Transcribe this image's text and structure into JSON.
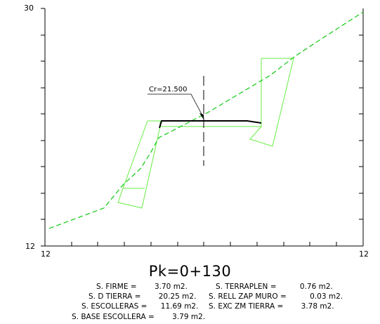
{
  "axes": {
    "y_top_label": "30",
    "y_bottom_label": "12",
    "x_left_label": "12",
    "x_right_label": "12"
  },
  "cr_label": "Cr=21.500",
  "title": "Pk=0+130",
  "quantities": [
    {
      "label": "S. FIRME =",
      "value": "3.70",
      "unit": "m2."
    },
    {
      "label": "S. TERRAPLEN =",
      "value": "0.76",
      "unit": "m2."
    },
    {
      "label": "S. D TIERRA =",
      "value": "20.25",
      "unit": "m2."
    },
    {
      "label": "S. RELL ZAP MURO =",
      "value": "0.03",
      "unit": "m2."
    },
    {
      "label": "S. ESCOLLERAS =",
      "value": "11.69",
      "unit": "m2."
    },
    {
      "label": "S. EXC ZM TIERRA =",
      "value": "3.78",
      "unit": "m2."
    },
    {
      "label": "S. BASE ESCOLLERA =",
      "value": "3.79",
      "unit": "m2."
    }
  ],
  "colors": {
    "terrain": "#22cc22",
    "wall": "#66ee44",
    "road": "#000000",
    "axis": "#000000"
  }
}
